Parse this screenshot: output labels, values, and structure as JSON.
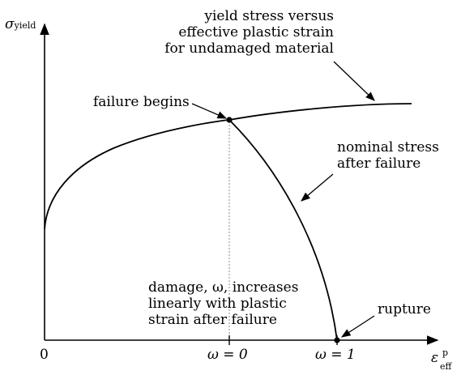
{
  "axes": {
    "y_symbol": "σ",
    "y_subscript": "yield",
    "x_symbol": "ε",
    "x_superscript": "p",
    "x_subscript": "eff",
    "origin_label": "0",
    "tick1_label": "ω = 0",
    "tick2_label": "ω = 1"
  },
  "annotations": {
    "yield_curve": [
      "yield stress versus",
      "effective plastic strain",
      "for undamaged material"
    ],
    "failure_begins": "failure begins",
    "nominal_stress": [
      "nominal stress",
      "after failure"
    ],
    "damage": [
      "damage, ω, increases",
      "linearly with plastic",
      "strain after failure"
    ],
    "rupture": "rupture"
  },
  "colors": {
    "line": "#000000",
    "guide": "#888888",
    "background": "#ffffff"
  }
}
